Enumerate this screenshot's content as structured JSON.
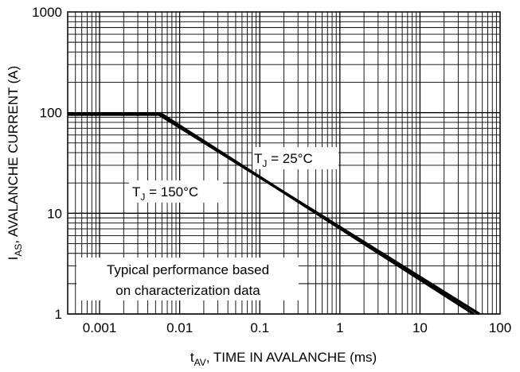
{
  "chart_data": {
    "type": "line",
    "title": "",
    "xscale": "log",
    "yscale": "log",
    "xlim": [
      0.0004,
      100
    ],
    "ylim": [
      1,
      1000
    ],
    "grid": true,
    "xticks": [
      0.001,
      0.01,
      0.1,
      1,
      10,
      100
    ],
    "xtick_labels": [
      "0.001",
      "0.01",
      "0.1",
      "1",
      "10",
      "100"
    ],
    "yticks": [
      1,
      10,
      100,
      1000
    ],
    "ytick_labels": [
      "1",
      "10",
      "100",
      "1000"
    ],
    "xlabel": {
      "main": "t",
      "sub": "AV",
      "rest": ", TIME IN AVALANCHE (ms)"
    },
    "ylabel": {
      "main": "I",
      "sub": "AS",
      "rest": ", AVALANCHE CURRENT (A)"
    },
    "series": [
      {
        "x": [
          0.0004,
          0.0055,
          55
        ],
        "y": [
          96,
          96,
          1
        ],
        "color": "#000000"
      },
      {
        "x": [
          0.0004,
          0.006,
          47
        ],
        "y": [
          96,
          96,
          1
        ],
        "color": "#000000"
      }
    ],
    "annotations": [
      {
        "main": "T",
        "sub": "J",
        "rest": " = 25°C",
        "x": 5.2,
        "y": 28
      },
      {
        "main": "T",
        "sub": "J",
        "rest": " = 150°C",
        "x": 0.0016,
        "y": 14.5
      }
    ],
    "note": [
      "Typical performance based",
      "on characterization data"
    ]
  }
}
